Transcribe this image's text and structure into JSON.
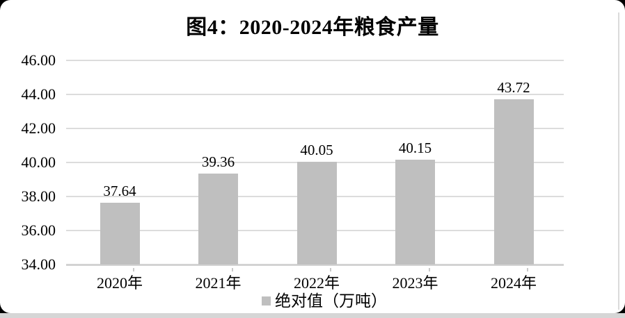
{
  "page": {
    "background_color": "#000000",
    "card_color": "#ffffff",
    "bottom_strip_color": "#d6d6d6",
    "right_edge_color": "#dadada"
  },
  "chart_data": {
    "type": "bar",
    "title": "图4：2020-2024年粮食产量",
    "categories": [
      "2020年",
      "2021年",
      "2022年",
      "2023年",
      "2024年"
    ],
    "values": [
      37.64,
      39.36,
      40.05,
      40.15,
      43.72
    ],
    "value_labels": [
      "37.64",
      "39.36",
      "40.05",
      "40.15",
      "43.72"
    ],
    "series": [
      {
        "name": "绝对值（万吨）",
        "values": [
          37.64,
          39.36,
          40.05,
          40.15,
          43.72
        ]
      }
    ],
    "xlabel": "",
    "ylabel": "",
    "ylim": [
      34,
      46
    ],
    "y_tick_step": 2,
    "y_tick_labels": [
      "46.00",
      "44.00",
      "42.00",
      "40.00",
      "38.00",
      "36.00",
      "34.00"
    ],
    "grid": true,
    "legend_position": "bottom",
    "bar_color": "#bfbfbf",
    "gridline_color": "#dcdcdc",
    "axis_line_color": "#d3d3d3",
    "text_color": "#000000"
  },
  "legend": {
    "label": "绝对值（万吨）",
    "swatch_color": "#bfbfbf"
  }
}
